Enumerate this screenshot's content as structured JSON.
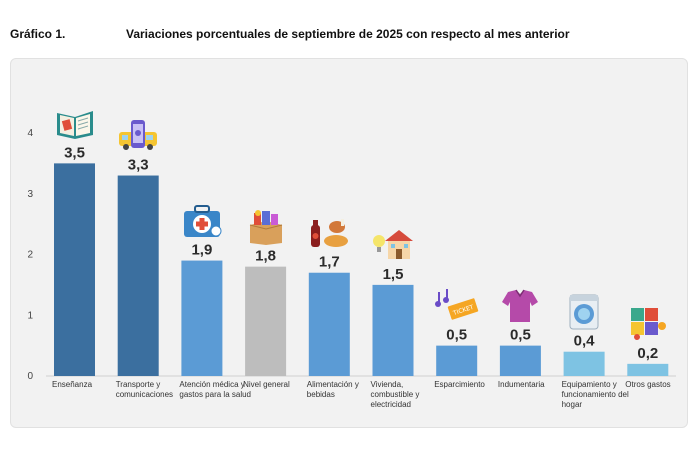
{
  "header": {
    "figure_label": "Gráfico 1.",
    "title": "Variaciones porcentuales de septiembre de 2025 con respecto al mes anterior"
  },
  "chart_data": {
    "type": "bar",
    "title": "Variaciones porcentuales de septiembre de 2025 con respecto al mes anterior",
    "xlabel": "",
    "ylabel": "",
    "ylim": [
      0,
      4
    ],
    "yticks": [
      "0",
      "1",
      "2",
      "3",
      "4"
    ],
    "grid": false,
    "categories": [
      "Enseñanza",
      "Transporte y comunicaciones",
      "Atención médica y gastos para la salud",
      "Nivel general",
      "Alimentación y bebidas",
      "Vivienda, combustible y electricidad",
      "Esparcimiento",
      "Indumentaria",
      "Equipamiento y funcionamiento del hogar",
      "Otros gastos"
    ],
    "values": [
      3.5,
      3.3,
      1.9,
      1.8,
      1.7,
      1.5,
      0.5,
      0.5,
      0.4,
      0.2
    ],
    "value_labels": [
      "3,5",
      "3,3",
      "1,9",
      "1,8",
      "1,7",
      "1,5",
      "0,5",
      "0,5",
      "0,4",
      "0,2"
    ],
    "colors": [
      "#3b6f9f",
      "#3b6f9f",
      "#5b9bd5",
      "#bdbdbd",
      "#5b9bd5",
      "#5b9bd5",
      "#5b9bd5",
      "#5b9bd5",
      "#7ec3e3",
      "#7ec3e3"
    ],
    "icons": [
      "book-icon",
      "bus-phone-icon",
      "medical-kit-icon",
      "shopping-box-icon",
      "food-drink-icon",
      "house-bulb-icon",
      "music-ticket-icon",
      "clothes-icon",
      "washing-machine-icon",
      "puzzle-icon"
    ]
  }
}
